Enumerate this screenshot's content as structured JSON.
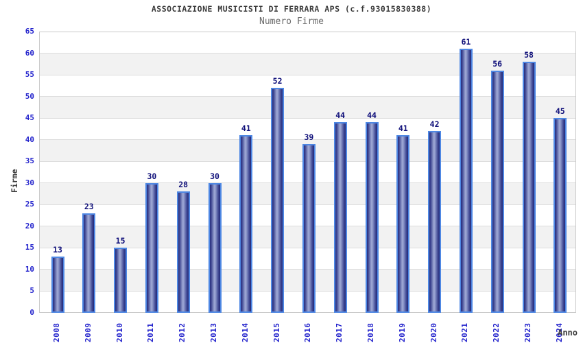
{
  "chart": {
    "title": "ASSOCIAZIONE MUSICISTI DI FERRARA APS (c.f.93015830388)",
    "subtitle": "Numero Firme",
    "y_axis_title": "Firme",
    "x_axis_title": "Anno"
  },
  "chart_data": {
    "type": "bar",
    "title": "ASSOCIAZIONE MUSICISTI DI FERRARA APS (c.f.93015830388)",
    "subtitle": "Numero Firme",
    "xlabel": "Anno",
    "ylabel": "Firme",
    "categories": [
      "2008",
      "2009",
      "2010",
      "2011",
      "2012",
      "2013",
      "2014",
      "2015",
      "2016",
      "2017",
      "2018",
      "2019",
      "2020",
      "2021",
      "2022",
      "2023",
      "2024"
    ],
    "values": [
      13,
      23,
      15,
      30,
      28,
      30,
      41,
      52,
      39,
      44,
      44,
      41,
      42,
      61,
      56,
      58,
      45
    ],
    "ylim": [
      0,
      65
    ],
    "ytick_step": 5,
    "yticks": [
      0,
      5,
      10,
      15,
      20,
      25,
      30,
      35,
      40,
      45,
      50,
      55,
      60,
      65
    ],
    "grid": "horizontal-bands-alternating",
    "legend": "none",
    "bar_labels_shown": true
  },
  "colors": {
    "title": "#3a3a3a",
    "subtitle": "#6b6b6b",
    "tick_label": "#2222cc",
    "value_label": "#10107a",
    "band_gray": "#f2f2f2",
    "grid_line": "#dcdcdc",
    "plot_border": "#c9c9c9",
    "bar_border": "#4e87e3",
    "bar_dark": "#272e7d",
    "bar_light": "#9aa4d2"
  }
}
